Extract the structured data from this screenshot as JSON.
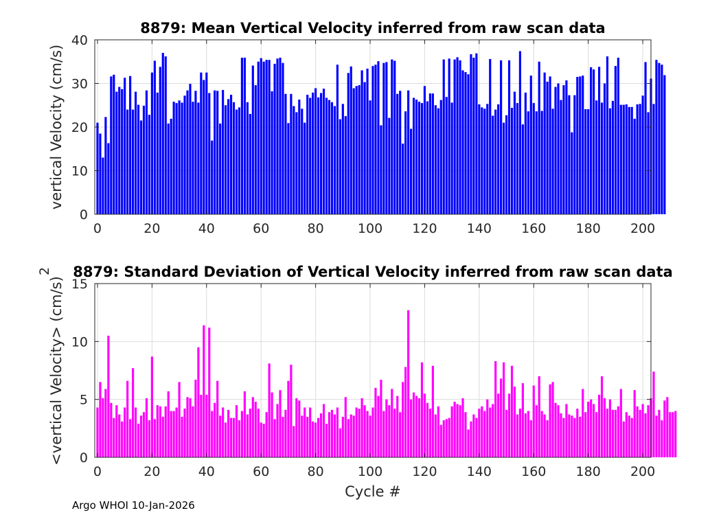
{
  "footer": "Argo WHOI 10-Jan-2026",
  "chart_data": [
    {
      "type": "bar",
      "title": "8879: Mean Vertical Velocity inferred from raw scan data",
      "xlabel": "",
      "ylabel": "vertical Velocity (cm/s)",
      "xlim": [
        -1,
        203
      ],
      "ylim": [
        0,
        40
      ],
      "xticks": [
        0,
        20,
        40,
        60,
        80,
        100,
        120,
        140,
        160,
        180,
        200
      ],
      "yticks": [
        0,
        10,
        20,
        30,
        40
      ],
      "grid": true,
      "color": "#0000ff",
      "x_start": 0,
      "values": [
        21.0,
        18.5,
        13.0,
        22.3,
        16.3,
        31.6,
        32.0,
        28.1,
        29.2,
        28.7,
        31.3,
        24.0,
        31.7,
        24.0,
        28.1,
        25.1,
        21.5,
        24.9,
        28.4,
        22.8,
        32.5,
        35.2,
        27.9,
        33.8,
        37.0,
        36.2,
        20.8,
        21.9,
        25.8,
        25.5,
        26.1,
        25.6,
        27.2,
        28.4,
        29.9,
        25.8,
        28.3,
        25.6,
        32.5,
        30.8,
        32.5,
        27.8,
        16.9,
        28.4,
        28.3,
        20.8,
        28.5,
        25.0,
        26.4,
        27.4,
        25.7,
        24.0,
        24.5,
        35.9,
        35.9,
        25.7,
        23.0,
        34.1,
        29.6,
        35.0,
        35.8,
        35.0,
        35.4,
        35.4,
        28.2,
        34.5,
        35.7,
        35.9,
        34.7,
        27.6,
        20.9,
        27.6,
        24.8,
        23.4,
        26.3,
        24.2,
        21.0,
        27.4,
        26.7,
        27.9,
        28.9,
        26.8,
        27.8,
        28.8,
        26.7,
        26.2,
        25.7,
        24.8,
        34.3,
        21.8,
        25.3,
        22.5,
        32.4,
        33.9,
        28.9,
        29.4,
        29.6,
        33.0,
        30.3,
        33.4,
        26.1,
        34.0,
        34.3,
        35.1,
        20.4,
        34.7,
        34.9,
        22.1,
        35.5,
        35.2,
        27.6,
        28.3,
        16.2,
        23.6,
        28.4,
        19.6,
        26.7,
        26.3,
        25.8,
        25.5,
        29.4,
        25.9,
        27.7,
        27.7,
        25.0,
        24.3,
        26.2,
        35.5,
        26.9,
        35.7,
        25.6,
        35.5,
        36.0,
        35.3,
        33.0,
        32.6,
        32.1,
        36.7,
        35.9,
        36.9,
        25.2,
        24.5,
        24.2,
        25.3,
        35.6,
        22.6,
        24.0,
        25.2,
        35.3,
        21.0,
        22.7,
        35.3,
        24.4,
        28.1,
        25.5,
        37.4,
        20.6,
        27.9,
        23.6,
        31.8,
        25.5,
        23.6,
        35.0,
        23.7,
        32.5,
        30.4,
        31.6,
        24.2,
        29.2,
        30.0,
        26.2,
        29.6,
        30.7,
        27.3,
        18.8,
        27.3,
        31.5,
        31.6,
        31.8,
        24.1,
        24.1,
        33.7,
        33.2,
        26.1,
        33.8,
        25.6,
        30.0,
        36.2,
        24.3,
        26.0,
        34.0,
        35.9,
        25.1,
        25.1,
        25.2,
        24.6,
        24.6,
        21.9,
        25.2,
        25.3,
        27.2,
        34.9,
        23.4,
        31.1,
        25.3,
        35.4,
        34.7,
        34.3,
        31.9
      ]
    },
    {
      "type": "bar",
      "title": "8879: Standard Deviation of Vertical Velocity inferred from raw scan data",
      "xlabel": "Cycle #",
      "ylabel": "<vertical Velocity> (cm/s)",
      "ylabel_superscript": "2",
      "xlim": [
        -1,
        203
      ],
      "ylim": [
        0,
        15
      ],
      "xticks": [
        0,
        20,
        40,
        60,
        80,
        100,
        120,
        140,
        160,
        180,
        200
      ],
      "yticks": [
        0,
        5,
        10,
        15
      ],
      "grid": true,
      "color": "#ff00ff",
      "x_start": 0,
      "values": [
        4.3,
        6.5,
        5.1,
        5.9,
        10.5,
        4.7,
        3.4,
        4.5,
        3.7,
        3.1,
        4.3,
        6.6,
        3.3,
        7.7,
        4.3,
        2.9,
        3.6,
        3.9,
        5.1,
        3.2,
        8.7,
        3.3,
        4.5,
        4.4,
        3.5,
        4.4,
        5.7,
        4.0,
        4.0,
        4.3,
        6.5,
        3.5,
        4.2,
        5.2,
        5.1,
        4.4,
        6.7,
        9.5,
        5.4,
        11.4,
        5.4,
        11.2,
        4.0,
        4.7,
        6.6,
        3.6,
        4.3,
        3.0,
        4.1,
        3.4,
        3.4,
        4.5,
        3.2,
        4.0,
        5.7,
        3.7,
        4.2,
        5.2,
        4.8,
        4.2,
        3.0,
        2.9,
        3.9,
        8.1,
        5.6,
        3.3,
        4.6,
        5.8,
        3.5,
        4.1,
        6.6,
        8.0,
        2.7,
        5.1,
        4.9,
        3.6,
        4.3,
        3.5,
        4.3,
        3.1,
        3.0,
        3.4,
        3.8,
        4.6,
        2.9,
        3.9,
        4.1,
        3.7,
        4.3,
        2.5,
        3.5,
        5.2,
        3.3,
        3.7,
        3.6,
        4.3,
        4.2,
        5.1,
        4.5,
        4.0,
        3.6,
        4.3,
        6.0,
        5.3,
        6.7,
        4.0,
        5.0,
        4.5,
        5.9,
        4.2,
        5.3,
        3.9,
        6.5,
        7.8,
        12.7,
        5.0,
        5.6,
        5.3,
        5.1,
        8.2,
        5.5,
        4.7,
        4.2,
        7.9,
        3.7,
        4.4,
        2.8,
        3.2,
        3.3,
        3.4,
        4.4,
        4.8,
        4.6,
        4.5,
        5.1,
        3.9,
        2.4,
        3.1,
        3.7,
        3.4,
        4.2,
        4.4,
        4.0,
        5.0,
        4.3,
        4.6,
        8.3,
        5.5,
        6.8,
        8.2,
        4.1,
        5.5,
        7.9,
        6.1,
        3.7,
        4.2,
        6.4,
        3.8,
        4.0,
        3.2,
        6.2,
        4.5,
        7.0,
        4.0,
        3.7,
        3.2,
        6.3,
        6.5,
        4.7,
        4.5,
        3.8,
        3.4,
        4.6,
        3.7,
        3.6,
        3.4,
        4.2,
        3.5,
        5.9,
        3.9,
        4.8,
        5.0,
        4.6,
        3.9,
        5.4,
        7.0,
        5.1,
        4.2,
        5.0,
        4.1,
        4.1,
        4.4,
        5.9,
        3.1,
        3.9,
        3.6,
        3.4,
        5.8,
        4.4,
        4.1,
        4.6,
        3.8,
        4.5,
        5.1,
        7.4,
        3.6,
        4.1,
        3.2,
        4.9,
        5.2,
        3.9,
        3.9,
        4.0
      ]
    }
  ]
}
